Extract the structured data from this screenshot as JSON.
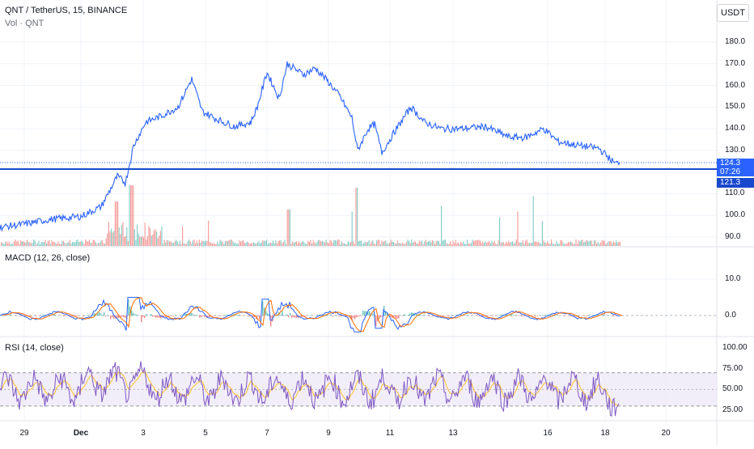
{
  "symbol_line": "QNT / TetherUS, 15, BINANCE",
  "vol_legend": "Vol · QNT",
  "currency": "USDT",
  "price_axis": {
    "ticks": [
      "180.0",
      "170.0",
      "160.0",
      "150.0",
      "140.0",
      "130.0",
      "110.0",
      "100.0",
      "90.0"
    ],
    "last_price": "124.3",
    "countdown": "07:26",
    "line_price": "121.3"
  },
  "macd": {
    "legend": "MACD (12, 26, close)",
    "ticks": [
      "10.0",
      "0.0"
    ]
  },
  "rsi": {
    "legend": "RSI (14, close)",
    "ticks": [
      "100.00",
      "75.00",
      "50.00",
      "25.00"
    ]
  },
  "time_axis": [
    "29",
    "Dec",
    "3",
    "5",
    "7",
    "9",
    "11",
    "13",
    "16",
    "18",
    "20"
  ],
  "colors": {
    "price_line": "#2962ff",
    "horizontal_line": "#1848cc",
    "volume_up": "#26a69a",
    "volume_down": "#ef5350",
    "macd_line": "#2962ff",
    "signal_line": "#ff6d00",
    "rsi_line": "#7e57c2",
    "rsi_band": "#ede7f6",
    "grid": "#f0f3fa",
    "axis_text": "#131722"
  },
  "chart_data": {
    "type": "line",
    "title": "QNT / TetherUS, 15, BINANCE",
    "x": [
      "29",
      "Dec",
      "3",
      "5",
      "7",
      "9",
      "11",
      "13",
      "16",
      "18"
    ],
    "series": [
      {
        "name": "QNT / TetherUS",
        "values": [
          94,
          99,
          133,
          148,
          158,
          166,
          153,
          143,
          140,
          124
        ]
      }
    ],
    "ylim": [
      88,
      185
    ],
    "grid": true,
    "xlabel": "",
    "ylabel": ""
  }
}
